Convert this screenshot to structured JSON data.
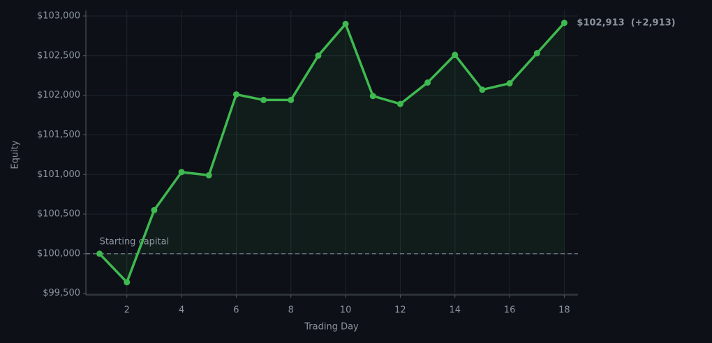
{
  "chart_data": {
    "type": "line",
    "xlabel": "Trading Day",
    "ylabel": "Equity",
    "x": [
      1,
      2,
      3,
      4,
      5,
      6,
      7,
      8,
      9,
      10,
      11,
      12,
      13,
      14,
      15,
      16,
      17,
      18
    ],
    "series": [
      {
        "name": "Equity",
        "color": "#3fb950",
        "values": [
          100000,
          99640,
          100550,
          101030,
          100990,
          102010,
          101940,
          101940,
          102500,
          102900,
          101990,
          101890,
          102160,
          102510,
          102070,
          102150,
          102530,
          102913
        ]
      }
    ],
    "xlim": [
      0.5,
      18.5
    ],
    "xticks": [
      2,
      4,
      6,
      8,
      10,
      12,
      14,
      16,
      18
    ],
    "ylim": [
      99480,
      103070
    ],
    "yticks": [
      {
        "value": 99500,
        "label": "$99,500"
      },
      {
        "value": 100000,
        "label": "$100,000"
      },
      {
        "value": 100500,
        "label": "$100,500"
      },
      {
        "value": 101000,
        "label": "$101,000"
      },
      {
        "value": 101500,
        "label": "$101,500"
      },
      {
        "value": 102000,
        "label": "$102,000"
      },
      {
        "value": 102500,
        "label": "$102,500"
      },
      {
        "value": 103000,
        "label": "$103,000"
      }
    ],
    "grid": true,
    "baseline": 100000,
    "baseline_label": "Starting capital",
    "end_label": "$102,913  (+2,913)"
  }
}
